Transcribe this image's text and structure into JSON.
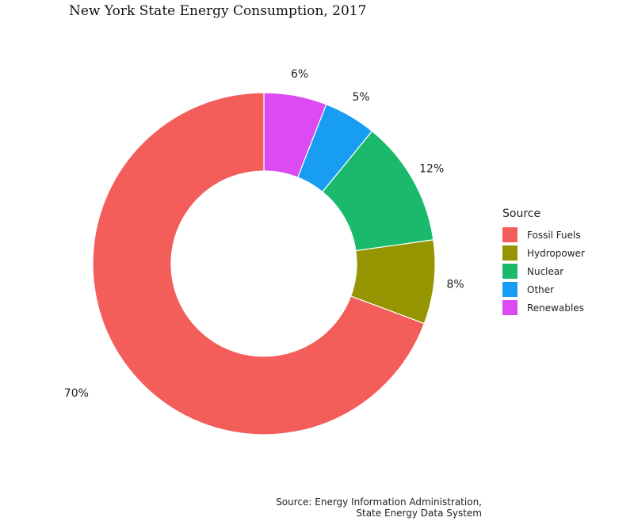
{
  "chart_data": {
    "type": "pie",
    "title": "New York State Energy Consumption, 2017",
    "legend_title": "Source",
    "legend_position": "right",
    "categories": [
      "Fossil Fuels",
      "Hydropower",
      "Nuclear",
      "Other",
      "Renewables"
    ],
    "values": [
      70,
      8,
      12,
      5,
      6
    ],
    "value_labels": [
      "70%",
      "8%",
      "12%",
      "5%",
      "6%"
    ],
    "slice_order": [
      "Renewables",
      "Other",
      "Nuclear",
      "Hydropower",
      "Fossil Fuels"
    ],
    "colors": {
      "Fossil Fuels": "#F35E5A",
      "Hydropower": "#949500",
      "Nuclear": "#1AB96C",
      "Other": "#179EF2",
      "Renewables": "#DC4AF2"
    },
    "caption_lines": [
      "Source: Energy Information Administration,",
      "State Energy Data System"
    ]
  }
}
